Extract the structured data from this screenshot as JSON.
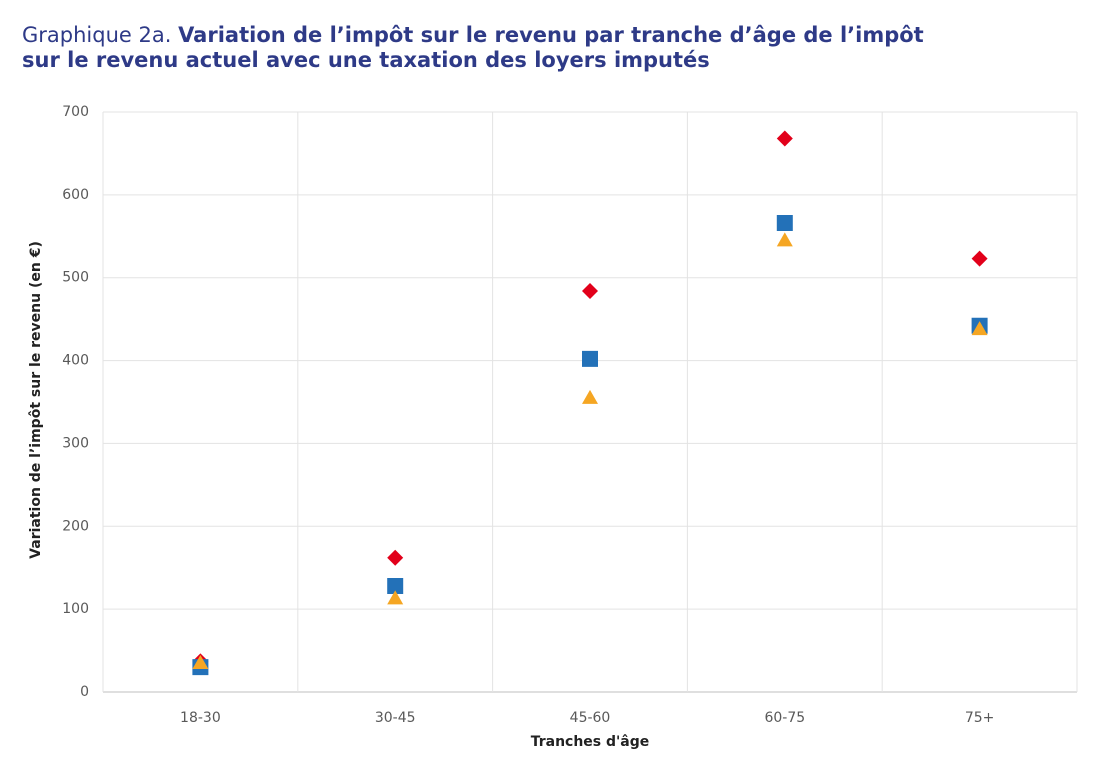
{
  "chart_data": {
    "type": "scatter",
    "title_prefix": "Graphique 2a.",
    "title": [
      "Variation de l’impôt sur le revenu par tranche d’âge de l’impôt",
      "sur le revenu actuel avec une taxation des loyers imputés"
    ],
    "x_label": "Tranches d'âge",
    "y_label": "Variation de l’impôt sur le revenu (en €)",
    "categories": [
      "18-30",
      "30-45",
      "45-60",
      "60-75",
      "75+"
    ],
    "series": [
      {
        "color": "#e2001a",
        "marker": "diamond",
        "values": [
          37,
          162,
          484,
          668,
          523
        ]
      },
      {
        "color": "#2371b8",
        "marker": "square",
        "values": [
          30,
          128,
          402,
          566,
          442
        ]
      },
      {
        "color": "#f5a623",
        "marker": "triangle",
        "values": [
          35,
          113,
          355,
          545,
          438
        ]
      }
    ],
    "ylim": [
      0,
      700
    ],
    "yticks": [
      0,
      100,
      200,
      300,
      400,
      500,
      600,
      700
    ],
    "grid": true
  }
}
